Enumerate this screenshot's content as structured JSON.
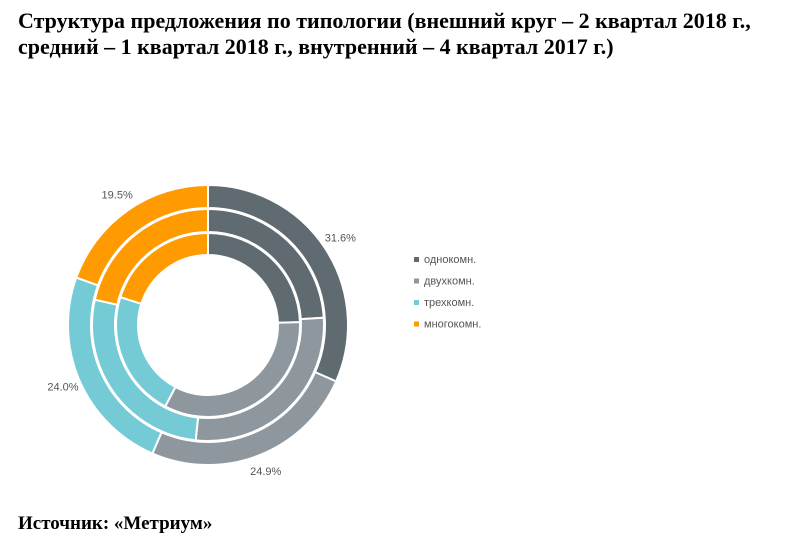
{
  "chart_data": {
    "type": "donut",
    "title": "Структура предложения по типологии (внешний круг – 2 квартал 2018 г., средний – 1 квартал 2018 г., внутренний – 4 квартал 2017 г.)",
    "source": "Источник: «Метриум»",
    "categories": [
      "однокомн.",
      "двухкомн.",
      "трехкомн.",
      "многокомн."
    ],
    "colors": [
      "#5f6b71",
      "#8e979e",
      "#74cbd5",
      "#ff9a00"
    ],
    "series": [
      {
        "values": [
          31.6,
          24.9,
          24.0,
          19.5
        ],
        "value_labels": [
          "31.6%",
          "24.9%",
          "24.0%",
          "19.5%"
        ]
      },
      {
        "values": [
          24.0,
          27.7,
          26.8,
          21.5
        ]
      },
      {
        "values": [
          24.5,
          33.2,
          22.2,
          20.1
        ]
      }
    ],
    "legend": "right"
  }
}
